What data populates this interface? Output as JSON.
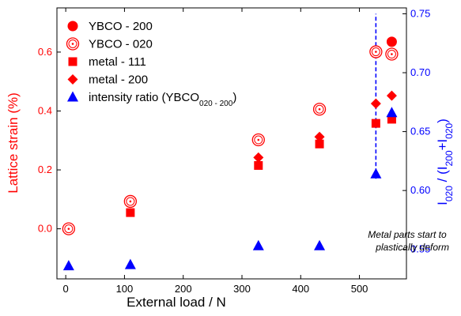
{
  "chart_data": {
    "type": "scatter",
    "xlabel": "External load / N",
    "ylabel": "Lattice strain (%)",
    "y2label": {
      "base": "I",
      "parts": [
        [
          "020",
          true
        ],
        [
          " / (I",
          false
        ],
        [
          "200",
          true
        ],
        [
          "+I",
          false
        ],
        [
          "020",
          true
        ],
        [
          ")",
          false
        ]
      ]
    },
    "xlim": [
      -15,
      580
    ],
    "xticks": [
      0,
      100,
      200,
      300,
      400,
      500
    ],
    "ylim": [
      -0.17,
      0.75
    ],
    "yticks": [
      0.0,
      0.2,
      0.4,
      0.6
    ],
    "y2lim": [
      0.525,
      0.755
    ],
    "y2ticks": [
      0.55,
      0.6,
      0.65,
      0.7,
      0.75
    ],
    "colors": {
      "left_axis": "#ff0000",
      "right_axis": "#0000ff",
      "axes": "#000000"
    },
    "series": [
      {
        "name": "YBCO - 200",
        "axis": "left",
        "marker": "filled-circle",
        "color": "#ff0000",
        "x": [
          555
        ],
        "y": [
          0.635
        ]
      },
      {
        "name": "YBCO - 020",
        "axis": "left",
        "marker": "open-circle",
        "color": "#ff0000",
        "x": [
          5,
          110,
          328,
          432,
          528,
          555
        ],
        "y": [
          0.0,
          0.093,
          0.302,
          0.406,
          0.601,
          0.593
        ]
      },
      {
        "name": "metal - 111",
        "axis": "left",
        "marker": "square",
        "color": "#ff0000",
        "x": [
          110,
          328,
          432,
          528,
          555
        ],
        "y": [
          0.055,
          0.215,
          0.288,
          0.358,
          0.372
        ]
      },
      {
        "name": "metal - 200",
        "axis": "left",
        "marker": "diamond",
        "color": "#ff0000",
        "x": [
          110,
          328,
          432,
          528,
          555
        ],
        "y": [
          0.095,
          0.242,
          0.312,
          0.425,
          0.452
        ]
      },
      {
        "name": "intensity ratio (YBCO",
        "name_sub": "020 - 200",
        "name_suffix": ")",
        "axis": "right",
        "marker": "triangle",
        "color": "#0000ff",
        "x": [
          5,
          110,
          328,
          432,
          528,
          555
        ],
        "y": [
          0.536,
          0.537,
          0.553,
          0.553,
          0.614,
          0.666
        ]
      }
    ],
    "reference_line": {
      "x": 528,
      "style": "dashed",
      "color": "#0000ff",
      "axis": "right",
      "y_from": 0.61,
      "y_to": 0.75
    },
    "annotation": {
      "lines": [
        "Metal parts start to",
        "plastically deform"
      ]
    },
    "legend_position": "top-left",
    "grid": false
  }
}
